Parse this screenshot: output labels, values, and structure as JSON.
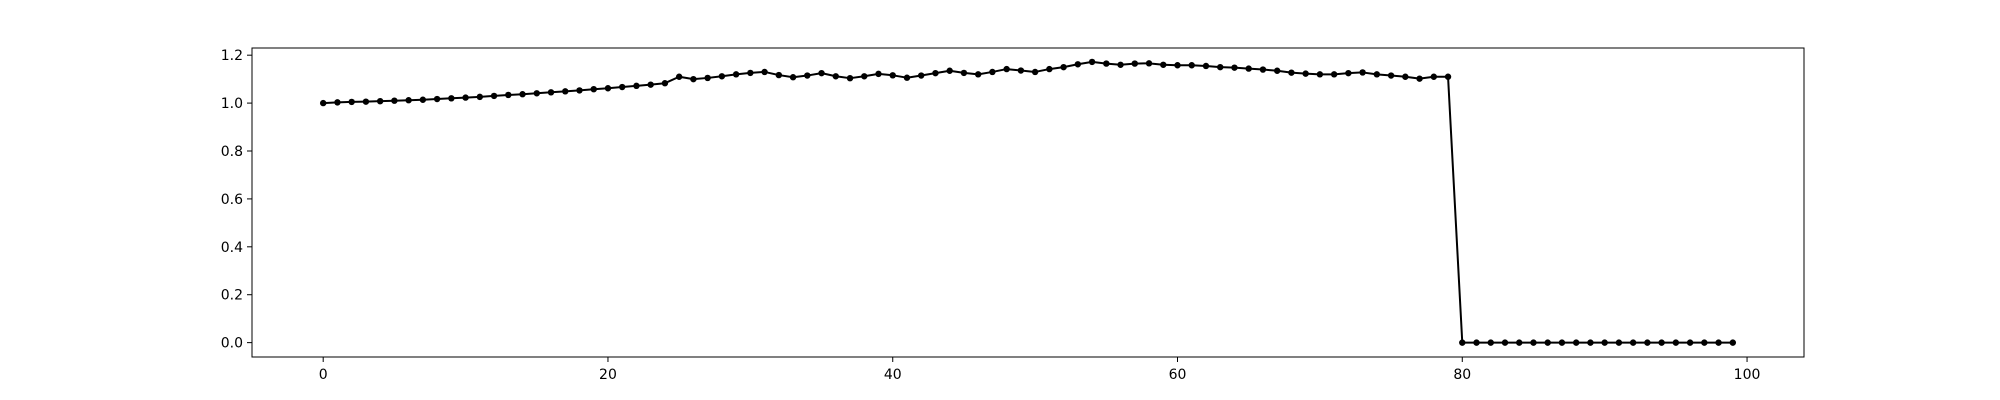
{
  "chart_data": {
    "type": "line",
    "title": "",
    "xlabel": "",
    "ylabel": "",
    "xlim": [
      -5,
      104
    ],
    "ylim": [
      -0.06,
      1.23
    ],
    "xticks": [
      0,
      20,
      40,
      60,
      80,
      100
    ],
    "yticks": [
      0.0,
      0.2,
      0.4,
      0.6,
      0.8,
      1.0,
      1.2
    ],
    "xtick_labels": [
      "0",
      "20",
      "40",
      "60",
      "80",
      "100"
    ],
    "ytick_labels": [
      "0.0",
      "0.2",
      "0.4",
      "0.6",
      "0.8",
      "1.0",
      "1.2"
    ],
    "grid": false,
    "legend": null,
    "series": [
      {
        "color": "#000000",
        "marker": "circle",
        "x": [
          0,
          1,
          2,
          3,
          4,
          5,
          6,
          7,
          8,
          9,
          10,
          11,
          12,
          13,
          14,
          15,
          16,
          17,
          18,
          19,
          20,
          21,
          22,
          23,
          24,
          25,
          26,
          27,
          28,
          29,
          30,
          31,
          32,
          33,
          34,
          35,
          36,
          37,
          38,
          39,
          40,
          41,
          42,
          43,
          44,
          45,
          46,
          47,
          48,
          49,
          50,
          51,
          52,
          53,
          54,
          55,
          56,
          57,
          58,
          59,
          60,
          61,
          62,
          63,
          64,
          65,
          66,
          67,
          68,
          69,
          70,
          71,
          72,
          73,
          74,
          75,
          76,
          77,
          78,
          79,
          80,
          81,
          82,
          83,
          84,
          85,
          86,
          87,
          88,
          89,
          90,
          91,
          92,
          93,
          94,
          95,
          96,
          97,
          98,
          99
        ],
        "values": [
          1.0,
          1.003,
          1.005,
          1.006,
          1.008,
          1.01,
          1.012,
          1.014,
          1.017,
          1.02,
          1.023,
          1.026,
          1.03,
          1.034,
          1.037,
          1.041,
          1.045,
          1.049,
          1.053,
          1.058,
          1.062,
          1.067,
          1.072,
          1.077,
          1.083,
          1.11,
          1.1,
          1.105,
          1.112,
          1.12,
          1.126,
          1.13,
          1.117,
          1.108,
          1.115,
          1.125,
          1.112,
          1.104,
          1.112,
          1.122,
          1.116,
          1.106,
          1.115,
          1.125,
          1.135,
          1.126,
          1.12,
          1.13,
          1.142,
          1.136,
          1.13,
          1.142,
          1.15,
          1.162,
          1.172,
          1.165,
          1.16,
          1.165,
          1.166,
          1.16,
          1.158,
          1.158,
          1.155,
          1.15,
          1.148,
          1.144,
          1.14,
          1.135,
          1.127,
          1.123,
          1.12,
          1.12,
          1.125,
          1.128,
          1.12,
          1.115,
          1.11,
          1.102,
          1.11,
          1.11,
          0.0,
          0.0,
          0.0,
          0.0,
          0.0,
          0.0,
          0.0,
          0.0,
          0.0,
          0.0,
          0.0,
          0.0,
          0.0,
          0.0,
          0.0,
          0.0,
          0.0,
          0.0,
          0.0,
          0.0
        ]
      }
    ]
  }
}
